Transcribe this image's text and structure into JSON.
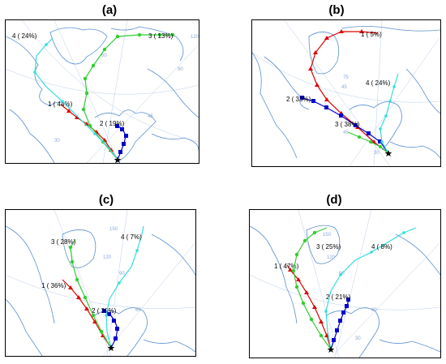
{
  "panels": [
    {
      "id": "a",
      "title": "(a)",
      "lat_labels": [
        "120",
        "90",
        "60",
        "45",
        "30"
      ],
      "trajectories": [
        {
          "label": "1 ( 44%)",
          "color": "#dd0000",
          "marker": "triangle"
        },
        {
          "label": "2 ( 19%)",
          "color": "#0000cc",
          "marker": "square"
        },
        {
          "label": "3 ( 13%)",
          "color": "#33cc33",
          "marker": "circle"
        },
        {
          "label": "4 ( 24%)",
          "color": "#33dddd",
          "marker": "star"
        }
      ]
    },
    {
      "id": "b",
      "title": "(b)",
      "lat_labels": [
        "75",
        "45",
        "45",
        "30"
      ],
      "trajectories": [
        {
          "label": "1 ( 5%)",
          "color": "#dd0000",
          "marker": "triangle"
        },
        {
          "label": "2 ( 33%)",
          "color": "#0000cc",
          "marker": "square"
        },
        {
          "label": "3 ( 38%)",
          "color": "#33cc33",
          "marker": "circle"
        },
        {
          "label": "4 ( 24%)",
          "color": "#33dddd",
          "marker": "star"
        }
      ]
    },
    {
      "id": "c",
      "title": "(c)",
      "lat_labels": [
        "150",
        "120",
        "90",
        "60",
        "30"
      ],
      "trajectories": [
        {
          "label": "1 ( 36%)",
          "color": "#dd0000",
          "marker": "triangle"
        },
        {
          "label": "2 ( 30%)",
          "color": "#0000cc",
          "marker": "square"
        },
        {
          "label": "3 ( 28%)",
          "color": "#33cc33",
          "marker": "circle"
        },
        {
          "label": "4 ( 7%)",
          "color": "#33dddd",
          "marker": "star"
        }
      ]
    },
    {
      "id": "d",
      "title": "(d)",
      "lat_labels": [
        "150",
        "120",
        "90",
        "60",
        "30"
      ],
      "trajectories": [
        {
          "label": "1 ( 47%)",
          "color": "#dd0000",
          "marker": "triangle"
        },
        {
          "label": "2 ( 21%)",
          "color": "#0000cc",
          "marker": "square"
        },
        {
          "label": "3 ( 25%)",
          "color": "#33cc33",
          "marker": "circle"
        },
        {
          "label": "4 ( 8%)",
          "color": "#33dddd",
          "marker": "star"
        }
      ]
    }
  ]
}
